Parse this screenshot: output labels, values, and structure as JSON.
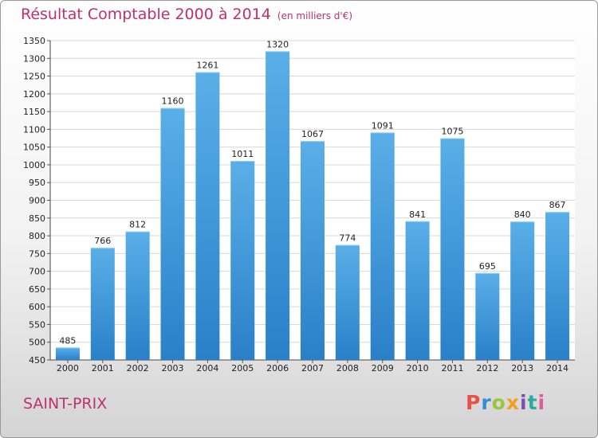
{
  "title": "Résultat Comptable 2000 à 2014",
  "subtitle": "(en milliers d'€)",
  "location": "SAINT-PRIX",
  "logo": {
    "text": "Proxiti",
    "colors": [
      "#e8504a",
      "#2f8fd0",
      "#9bc53d",
      "#f0a020",
      "#7a4fb0",
      "#29a9a0",
      "#e05a9a"
    ]
  },
  "colors": {
    "bar_top": "#5aafe8",
    "bar_bottom": "#2a80c8",
    "grid": "#d8d8d8",
    "accent": "#c0306a"
  },
  "chart_data": {
    "type": "bar",
    "title": "Résultat Comptable 2000 à 2014",
    "ylabel": "en milliers d'€",
    "xlabel": "",
    "categories": [
      "2000",
      "2001",
      "2002",
      "2003",
      "2004",
      "2005",
      "2006",
      "2007",
      "2008",
      "2009",
      "2010",
      "2011",
      "2012",
      "2013",
      "2014"
    ],
    "values": [
      485,
      766,
      812,
      1160,
      1261,
      1011,
      1320,
      1067,
      774,
      1091,
      841,
      1075,
      695,
      840,
      867
    ],
    "ylim": [
      450,
      1350
    ],
    "yticks": [
      450,
      500,
      550,
      600,
      650,
      700,
      750,
      800,
      850,
      900,
      950,
      1000,
      1050,
      1100,
      1150,
      1200,
      1250,
      1300,
      1350
    ],
    "grid": true
  }
}
